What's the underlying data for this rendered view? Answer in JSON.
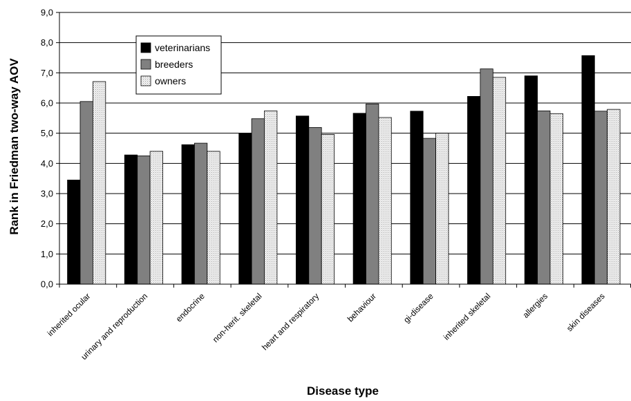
{
  "chart_data": {
    "type": "bar",
    "title": "",
    "xlabel": "Disease type",
    "ylabel": "Rank in Friedman two-way AOV",
    "ylim": [
      0,
      9
    ],
    "ytick_step": 1,
    "ytick_labels": [
      "0,0",
      "1,0",
      "2,0",
      "3,0",
      "4,0",
      "5,0",
      "6,0",
      "7,0",
      "8,0",
      "9,0"
    ],
    "grid": true,
    "legend_position": "top-left",
    "categories": [
      "inherited ocular",
      "urinary and reproduction",
      "endocrine",
      "non-herit. skeletal",
      "heart and respiratory",
      "behaviour",
      "gi-disease",
      "inherited skeletal",
      "allergies",
      "skin diseases"
    ],
    "series": [
      {
        "name": "veterinarians",
        "color": "#000000",
        "pattern": "solid",
        "values": [
          3.45,
          4.28,
          4.62,
          5.0,
          5.57,
          5.66,
          5.73,
          6.22,
          6.9,
          7.57
        ]
      },
      {
        "name": "breeders",
        "color": "#808080",
        "pattern": "solid",
        "values": [
          6.05,
          4.25,
          4.67,
          5.48,
          5.19,
          5.97,
          4.83,
          7.13,
          5.74,
          5.73
        ]
      },
      {
        "name": "owners",
        "color": "#f2f2f2",
        "pattern": "dotted",
        "values": [
          6.71,
          4.4,
          4.4,
          5.74,
          4.96,
          5.52,
          5.0,
          6.85,
          5.65,
          5.79
        ]
      }
    ]
  }
}
